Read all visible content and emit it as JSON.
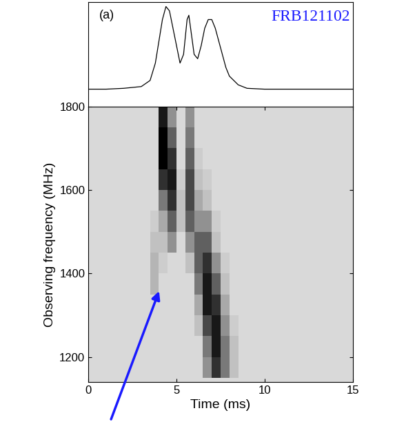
{
  "chart_data": [
    {
      "type": "line",
      "title": "FRB121102",
      "annotations": [
        "(a)"
      ],
      "x": [
        0,
        1,
        2,
        3,
        3.5,
        3.8,
        4.0,
        4.2,
        4.4,
        4.6,
        4.8,
        5.0,
        5.2,
        5.4,
        5.6,
        5.7,
        5.8,
        6.0,
        6.2,
        6.4,
        6.6,
        6.8,
        7.0,
        7.2,
        7.4,
        7.6,
        7.8,
        8.0,
        8.5,
        9,
        10,
        12,
        15
      ],
      "values": [
        0.05,
        0.05,
        0.06,
        0.08,
        0.15,
        0.35,
        0.6,
        0.85,
        1.0,
        0.95,
        0.75,
        0.55,
        0.35,
        0.45,
        0.85,
        0.9,
        0.75,
        0.45,
        0.4,
        0.55,
        0.75,
        0.85,
        0.85,
        0.75,
        0.6,
        0.45,
        0.3,
        0.2,
        0.1,
        0.06,
        0.05,
        0.05,
        0.05
      ],
      "color": "#000000",
      "xlim": [
        0,
        15
      ],
      "ylim": [
        -0.15,
        1.05
      ],
      "tick_labels": false
    },
    {
      "type": "heatmap",
      "x_label": "Time (ms)",
      "y_label": "Observing frequency (MHz)",
      "xlim": [
        0,
        15
      ],
      "ylim": [
        1140,
        1800
      ],
      "xticks": [
        0,
        5,
        10,
        15
      ],
      "yticks": [
        1200,
        1400,
        1600,
        1800
      ],
      "x_bins": [
        3.0,
        3.5,
        4.0,
        4.5,
        5.0,
        5.5,
        6.0,
        6.5,
        7.0,
        7.5,
        8.0,
        8.5,
        9.0
      ],
      "y_bins": [
        1150,
        1200,
        1250,
        1300,
        1350,
        1400,
        1450,
        1500,
        1550,
        1600,
        1650,
        1700,
        1750,
        1800
      ],
      "cells": [
        [
          0,
          0,
          0,
          0,
          0,
          0,
          0,
          0.3,
          0.7,
          0.4,
          0.1,
          0
        ],
        [
          0,
          0,
          0,
          0,
          0,
          0,
          0,
          0.4,
          0.8,
          0.4,
          0.1,
          0
        ],
        [
          0,
          0,
          0,
          0,
          0,
          0,
          0.1,
          0.6,
          0.8,
          0.3,
          0.05,
          0
        ],
        [
          0,
          0,
          0,
          0,
          0,
          0,
          0.2,
          0.8,
          0.7,
          0.2,
          0,
          0
        ],
        [
          0,
          0.15,
          0,
          0,
          0,
          0,
          0.4,
          0.8,
          0.5,
          0.1,
          0,
          0
        ],
        [
          0,
          0.15,
          0.05,
          0,
          0,
          0.1,
          0.5,
          0.7,
          0.3,
          0.05,
          0,
          0
        ],
        [
          0,
          0.1,
          0.1,
          0.3,
          0,
          0.3,
          0.5,
          0.5,
          0.1,
          0,
          0,
          0
        ],
        [
          0,
          0.05,
          0.2,
          0.5,
          0.1,
          0.5,
          0.3,
          0.3,
          0.05,
          0,
          0,
          0
        ],
        [
          0,
          0,
          0.4,
          0.7,
          0.1,
          0.6,
          0.2,
          0.1,
          0,
          0,
          0,
          0
        ],
        [
          0,
          0,
          0.7,
          0.8,
          0.05,
          0.6,
          0.1,
          0.05,
          0,
          0,
          0,
          0
        ],
        [
          0,
          0,
          0.9,
          0.7,
          0,
          0.5,
          0.05,
          0,
          0,
          0,
          0,
          0
        ],
        [
          0,
          0,
          0.9,
          0.5,
          0,
          0.4,
          0,
          0,
          0,
          0,
          0,
          0
        ],
        [
          0,
          0,
          0.8,
          0.3,
          0,
          0.3,
          0,
          0,
          0,
          0,
          0,
          0
        ]
      ]
    }
  ]
}
